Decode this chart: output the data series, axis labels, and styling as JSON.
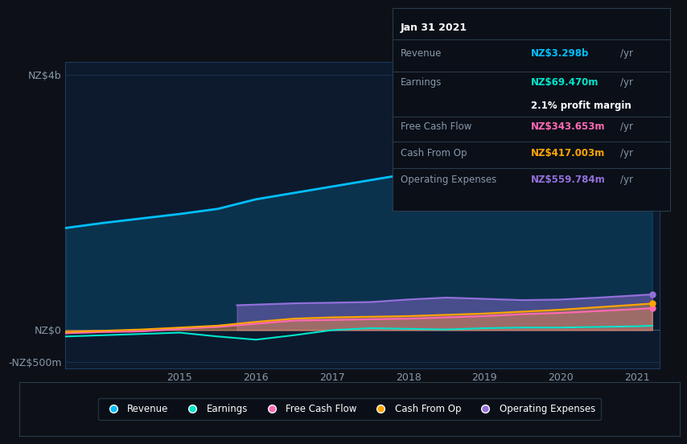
{
  "bg_color": "#0d1117",
  "plot_bg_color": "#0d1a2e",
  "ylabel_top": "NZ$4b",
  "ylabel_zero": "NZ$0",
  "ylabel_neg": "-NZ$500m",
  "x_ticks": [
    2015,
    2016,
    2017,
    2018,
    2019,
    2020,
    2021
  ],
  "x_min": 2013.5,
  "x_max": 2021.3,
  "y_min": -600,
  "y_max": 4200,
  "revenue_color": "#00bfff",
  "earnings_color": "#00e5cc",
  "fcf_color": "#ff69b4",
  "cashfromop_color": "#ffa500",
  "opex_color": "#9370db",
  "legend_labels": [
    "Revenue",
    "Earnings",
    "Free Cash Flow",
    "Cash From Op",
    "Operating Expenses"
  ],
  "tooltip": {
    "date": "Jan 31 2021",
    "revenue_label": "Revenue",
    "revenue_value": "NZ$3.298b",
    "revenue_color": "#00bfff",
    "earnings_label": "Earnings",
    "earnings_value": "NZ$69.470m",
    "earnings_color": "#00e5cc",
    "margin_text": "2.1% profit margin",
    "fcf_label": "Free Cash Flow",
    "fcf_value": "NZ$343.653m",
    "fcf_color": "#ff69b4",
    "cashop_label": "Cash From Op",
    "cashop_value": "NZ$417.003m",
    "cashop_color": "#ffa500",
    "opex_label": "Operating Expenses",
    "opex_value": "NZ$559.784m",
    "opex_color": "#9370db"
  },
  "revenue_x": [
    2013.5,
    2014.0,
    2014.5,
    2015.0,
    2015.5,
    2016.0,
    2016.5,
    2017.0,
    2017.5,
    2018.0,
    2018.5,
    2019.0,
    2019.5,
    2020.0,
    2020.5,
    2021.0,
    2021.2
  ],
  "revenue_y": [
    1600,
    1680,
    1750,
    1820,
    1900,
    2050,
    2150,
    2250,
    2350,
    2450,
    2530,
    2600,
    2700,
    2800,
    2900,
    3100,
    3298
  ],
  "earnings_x": [
    2013.5,
    2014.0,
    2014.5,
    2015.0,
    2015.5,
    2016.0,
    2016.5,
    2017.0,
    2017.5,
    2018.0,
    2018.5,
    2019.0,
    2019.5,
    2020.0,
    2020.5,
    2021.0,
    2021.2
  ],
  "earnings_y": [
    -100,
    -80,
    -60,
    -40,
    -100,
    -150,
    -80,
    0,
    30,
    20,
    10,
    30,
    40,
    40,
    50,
    60,
    69
  ],
  "fcf_x": [
    2013.5,
    2014.0,
    2014.5,
    2015.0,
    2015.5,
    2016.0,
    2016.5,
    2017.0,
    2017.5,
    2018.0,
    2018.5,
    2019.0,
    2019.5,
    2020.0,
    2020.5,
    2021.0,
    2021.2
  ],
  "fcf_y": [
    -50,
    -30,
    -20,
    20,
    50,
    100,
    150,
    160,
    170,
    180,
    200,
    220,
    250,
    270,
    300,
    330,
    344
  ],
  "cashfromop_x": [
    2013.5,
    2014.0,
    2014.5,
    2015.0,
    2015.5,
    2016.0,
    2016.5,
    2017.0,
    2017.5,
    2018.0,
    2018.5,
    2019.0,
    2019.5,
    2020.0,
    2020.5,
    2021.0,
    2021.2
  ],
  "cashfromop_y": [
    -30,
    -10,
    10,
    40,
    70,
    130,
    180,
    200,
    210,
    220,
    240,
    260,
    290,
    320,
    360,
    400,
    417
  ],
  "opex_x": [
    2015.75,
    2016.0,
    2016.5,
    2017.0,
    2017.5,
    2018.0,
    2018.5,
    2019.0,
    2019.5,
    2020.0,
    2020.5,
    2021.0,
    2021.2
  ],
  "opex_y": [
    390,
    400,
    420,
    430,
    440,
    480,
    510,
    490,
    470,
    480,
    510,
    545,
    560
  ]
}
